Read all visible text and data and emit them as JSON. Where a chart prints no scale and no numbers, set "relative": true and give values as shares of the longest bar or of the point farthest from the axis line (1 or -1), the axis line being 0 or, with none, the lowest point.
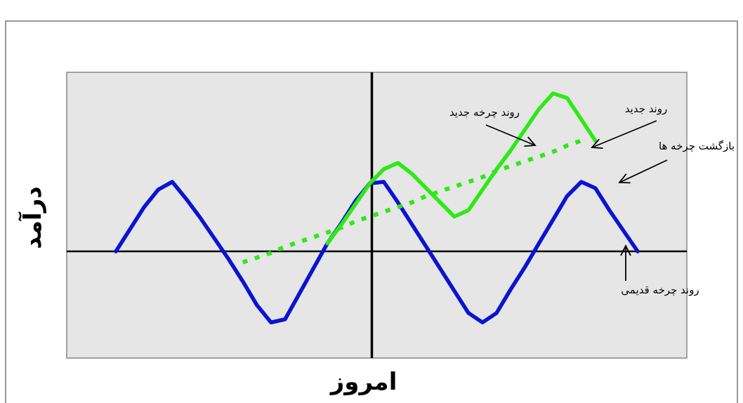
{
  "chart_data": {
    "type": "line",
    "relative": true,
    "xlabel": "امروز",
    "ylabel": "درآمد",
    "categories": [
      null,
      null,
      null,
      null,
      null,
      null,
      null,
      null,
      null,
      null,
      null,
      null,
      null,
      null,
      null,
      null,
      null,
      null,
      null,
      null,
      null,
      null,
      null,
      null,
      null,
      null,
      null,
      null,
      null,
      null,
      null,
      null,
      null,
      null,
      null,
      null,
      null,
      null
    ],
    "series": [
      {
        "color": "#0a14d2",
        "values": [
          0,
          0.14,
          0.28,
          0.39,
          0.44,
          0.33,
          0.21,
          0.08,
          -0.05,
          -0.19,
          -0.34,
          -0.45,
          -0.43,
          -0.27,
          -0.11,
          0.05,
          0.18,
          0.32,
          0.43,
          0.44,
          0.31,
          0.17,
          0.03,
          -0.11,
          -0.25,
          -0.39,
          -0.45,
          -0.39,
          -0.24,
          -0.1,
          0.05,
          0.2,
          0.35,
          0.44,
          0.4,
          0.26,
          0.13,
          0
        ]
      },
      {
        "color": "#2ee916",
        "values": [
          null,
          null,
          null,
          null,
          null,
          null,
          null,
          null,
          null,
          null,
          null,
          null,
          null,
          null,
          null,
          0.05,
          0.17,
          0.3,
          0.43,
          0.52,
          0.56,
          0.49,
          0.4,
          0.31,
          0.22,
          0.26,
          0.39,
          0.52,
          0.64,
          0.77,
          0.9,
          1,
          0.97,
          0.835,
          0.7,
          null,
          null,
          null
        ]
      },
      {
        "color": "#2ee916",
        "line_style": "dotted",
        "values": [
          null,
          null,
          null,
          null,
          null,
          null,
          null,
          null,
          null,
          -0.07,
          -0.04,
          -0.01,
          0.03,
          0.06,
          0.09,
          0.12,
          0.15,
          0.19,
          0.22,
          0.25,
          0.28,
          0.31,
          0.35,
          0.38,
          0.41,
          0.44,
          0.47,
          0.51,
          0.54,
          0.57,
          0.6,
          0.63,
          0.67,
          0.7,
          null,
          null,
          null,
          null
        ]
      }
    ],
    "annotations": [
      "روند چرخه جدید",
      "روند جدید",
      "بازگشت چرخه ها",
      "روند چرخه قدیمی"
    ]
  }
}
